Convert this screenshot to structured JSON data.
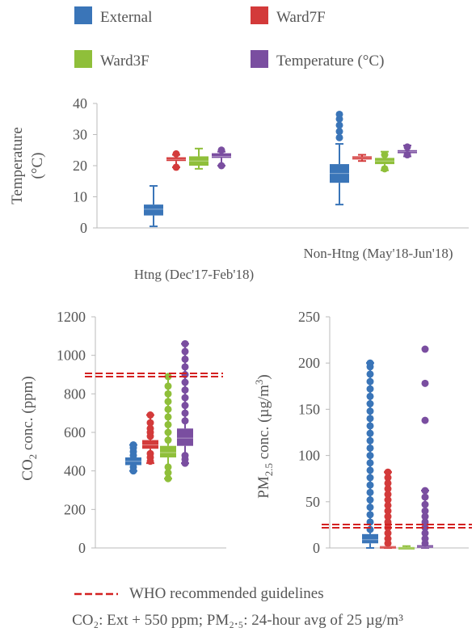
{
  "colors": {
    "External": "#3a75b8",
    "Ward7F": "#d33a3a",
    "Ward3F": "#8fbf3a",
    "Temperature": "#7a4ea0",
    "guideline": "#d32020",
    "axis": "#bbbbbb"
  },
  "legend": {
    "items": [
      {
        "key": "External",
        "label": "External"
      },
      {
        "key": "Ward7F",
        "label": "Ward7F"
      },
      {
        "key": "Ward3F",
        "label": "Ward3F"
      },
      {
        "key": "Temperature",
        "label": "Temperature (°C)"
      }
    ]
  },
  "footer": {
    "guideline_label": "WHO recommended guidelines",
    "note": "CO₂: Ext + 550 ppm; PM₂.₅: 24-hour avg of 25 µg/m³"
  },
  "chart_data": [
    {
      "type": "box",
      "id": "temperature",
      "ylabel": "Temperature (°C)",
      "ylim": [
        0,
        40
      ],
      "yticks": [
        0,
        10,
        20,
        30,
        40
      ],
      "categories": [
        "Htng  (Dec'17-Feb'18)",
        "Non-Htng  (May'18-Jun'18)"
      ],
      "series": [
        {
          "name": "External",
          "boxes": [
            {
              "min": 0.5,
              "q1": 4,
              "median": 6,
              "q3": 7.5,
              "max": 13.5,
              "outliers": []
            },
            {
              "min": 7.5,
              "q1": 14.5,
              "median": 17.5,
              "q3": 20.5,
              "max": 27,
              "outliers": [
                29,
                31,
                33,
                35,
                36.5
              ]
            }
          ]
        },
        {
          "name": "Ward7F",
          "boxes": [
            {
              "min": 19.5,
              "q1": 21.5,
              "median": 22,
              "q3": 22.7,
              "max": 23.5,
              "outliers": [
                19.5,
                23.8
              ]
            },
            {
              "min": 21.5,
              "q1": 22,
              "median": 22.5,
              "q3": 23,
              "max": 23.5,
              "outliers": []
            }
          ]
        },
        {
          "name": "Ward3F",
          "boxes": [
            {
              "min": 19,
              "q1": 20,
              "median": 21.5,
              "q3": 23,
              "max": 25.5,
              "outliers": []
            },
            {
              "min": 18.5,
              "q1": 20.5,
              "median": 21.5,
              "q3": 22.5,
              "max": 24.5,
              "outliers": [
                19,
                23.5
              ]
            }
          ]
        },
        {
          "name": "Temperature (°C)",
          "boxes": [
            {
              "min": 20,
              "q1": 22.5,
              "median": 23,
              "q3": 24,
              "max": 24.5,
              "outliers": [
                20,
                25
              ]
            },
            {
              "min": 23,
              "q1": 24,
              "median": 24.5,
              "q3": 25,
              "max": 26.5,
              "outliers": [
                23.5,
                26
              ]
            }
          ]
        }
      ]
    },
    {
      "type": "box",
      "id": "co2",
      "ylabel": "CO2 conc. (ppm)",
      "ylim": [
        0,
        1200
      ],
      "yticks": [
        0,
        200,
        400,
        600,
        800,
        1000,
        1200
      ],
      "guideline": 1000,
      "series": [
        {
          "name": "External",
          "box": {
            "min": 400,
            "q1": 430,
            "median": 450,
            "q3": 470,
            "max": 535,
            "outliers": [
              400,
              420,
              480,
              500,
              520,
              535
            ]
          }
        },
        {
          "name": "Ward7F",
          "box": {
            "min": 440,
            "q1": 515,
            "median": 535,
            "q3": 560,
            "max": 690,
            "outliers": [
              450,
              470,
              490,
              580,
              600,
              620,
              650,
              690
            ]
          }
        },
        {
          "name": "Ward3F",
          "box": {
            "min": 360,
            "q1": 470,
            "median": 495,
            "q3": 530,
            "max": 890,
            "outliers": [
              360,
              390,
              420,
              560,
              600,
              640,
              680,
              720,
              760,
              800,
              840,
              890
            ]
          }
        },
        {
          "name": "Temperature (°C)",
          "box": {
            "min": 440,
            "q1": 530,
            "median": 570,
            "q3": 620,
            "max": 1060,
            "outliers": [
              440,
              460,
              480,
              660,
              700,
              740,
              780,
              820,
              860,
              900,
              940,
              980,
              1020,
              1060
            ]
          }
        }
      ]
    },
    {
      "type": "box",
      "id": "pm25",
      "ylabel": "PM2.5 conc. (µg/m3)",
      "ylim": [
        0,
        250
      ],
      "yticks": [
        0,
        50,
        100,
        150,
        200,
        250
      ],
      "guideline": 25,
      "series": [
        {
          "name": "External",
          "box": {
            "min": 0,
            "q1": 5,
            "median": 9,
            "q3": 15,
            "max": 200,
            "outliers": [
              20,
              28,
              36,
              44,
              52,
              60,
              68,
              76,
              84,
              92,
              100,
              108,
              116,
              124,
              132,
              140,
              148,
              156,
              164,
              172,
              180,
              188,
              196,
              200
            ]
          }
        },
        {
          "name": "Ward7F",
          "box": {
            "min": 0,
            "q1": 0,
            "median": 1,
            "q3": 2,
            "max": 82,
            "outliers": [
              5,
              10,
              16,
              22,
              28,
              34,
              40,
              46,
              52,
              58,
              64,
              70,
              76,
              82
            ]
          }
        },
        {
          "name": "Ward3F",
          "box": {
            "min": 0,
            "q1": 0,
            "median": 0,
            "q3": 1,
            "max": 2,
            "outliers": []
          }
        },
        {
          "name": "Temperature (°C)",
          "box": {
            "min": 0,
            "q1": 0,
            "median": 1,
            "q3": 3,
            "max": 62,
            "outliers": [
              5,
              10,
              16,
              22,
              28,
              34,
              40,
              47,
              55,
              62,
              138,
              178,
              215
            ]
          }
        }
      ]
    }
  ]
}
